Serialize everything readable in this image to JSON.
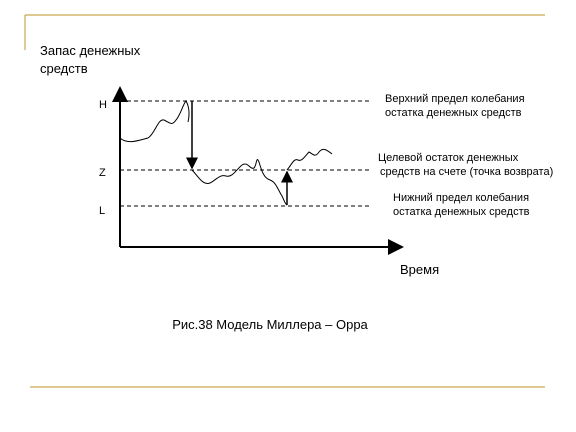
{
  "axis_labels": {
    "y": [
      "Запас денежных",
      "средств"
    ],
    "x": "Время"
  },
  "levels": [
    {
      "label": "H",
      "description": [
        "Верхний предел колебания",
        "остатка денежных средств"
      ]
    },
    {
      "label": "Z",
      "description": [
        "Целевой остаток денежных",
        "средств на счете (точка возврата)"
      ]
    },
    {
      "label": "L",
      "description": [
        "Нижний предел колебания",
        "остатка денежных средств"
      ]
    }
  ],
  "caption": "Рис.38 Модель Миллера – Орра"
}
